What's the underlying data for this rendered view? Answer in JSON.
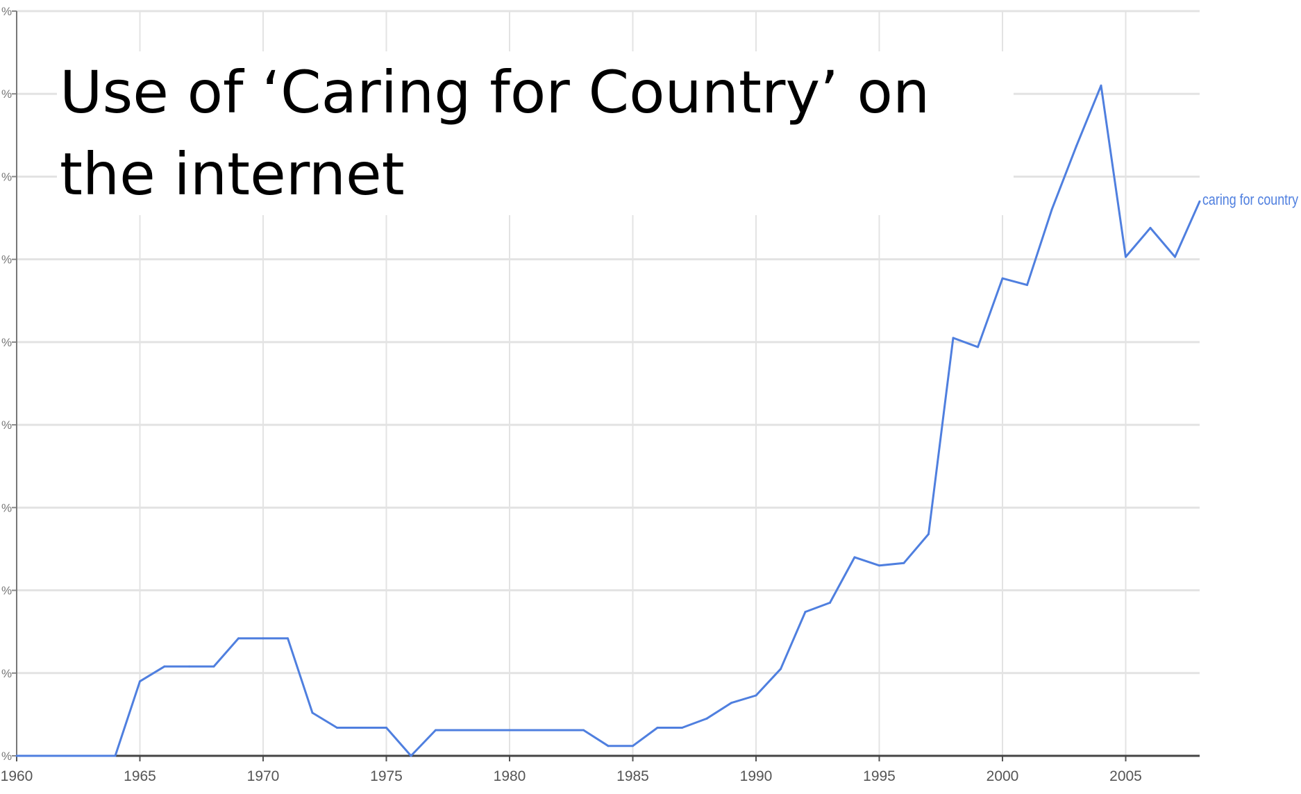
{
  "slide_title": "Use of ‘Caring for Country’ on the internet",
  "chart_data": {
    "type": "line",
    "title": "Use of ‘Caring for Country’ on the internet",
    "xlabel": "",
    "ylabel": "",
    "x_ticks": [
      "1960",
      "1965",
      "1970",
      "1975",
      "1980",
      "1985",
      "1990",
      "1995",
      "2000",
      "2005"
    ],
    "y_tick_labels": [
      "%",
      "%",
      "%",
      "%",
      "%",
      "%",
      "%",
      "%",
      "%",
      "%"
    ],
    "xlim": [
      1960,
      2008
    ],
    "ylim": [
      0,
      9
    ],
    "grid": true,
    "legend": "inline label at end of line",
    "series_color": "#4f7fdf",
    "series": [
      {
        "name": "caring for country",
        "x": [
          1960,
          1961,
          1962,
          1963,
          1964,
          1965,
          1966,
          1967,
          1968,
          1969,
          1970,
          1971,
          1972,
          1973,
          1974,
          1975,
          1976,
          1977,
          1978,
          1979,
          1980,
          1981,
          1982,
          1983,
          1984,
          1985,
          1986,
          1987,
          1988,
          1989,
          1990,
          1991,
          1992,
          1993,
          1994,
          1995,
          1996,
          1997,
          1998,
          1999,
          2000,
          2001,
          2002,
          2003,
          2004,
          2005,
          2006,
          2007,
          2008
        ],
        "values": [
          0,
          0,
          0,
          0,
          0,
          0.9,
          1.08,
          1.08,
          1.08,
          1.42,
          1.42,
          1.42,
          0.52,
          0.34,
          0.34,
          0.34,
          0,
          0.31,
          0.31,
          0.31,
          0.31,
          0.31,
          0.31,
          0.31,
          0.12,
          0.12,
          0.34,
          0.34,
          0.45,
          0.64,
          0.73,
          1.05,
          1.74,
          1.85,
          2.4,
          2.3,
          2.33,
          2.68,
          5.05,
          4.94,
          5.77,
          5.69,
          6.6,
          7.37,
          8.1,
          6.03,
          6.38,
          6.03,
          6.7
        ]
      }
    ]
  }
}
